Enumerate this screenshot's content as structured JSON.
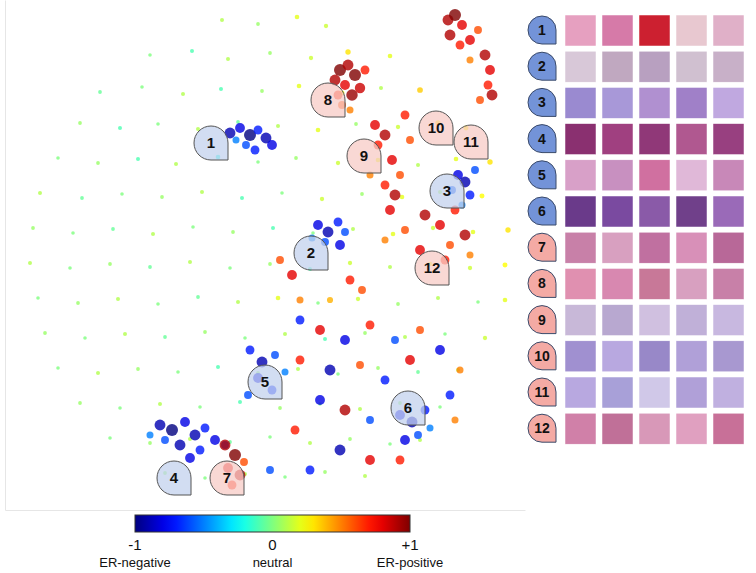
{
  "chart_data": {
    "type": "scatter",
    "xlim": [
      0,
      520
    ],
    "ylim": [
      0,
      510
    ],
    "xticks": [],
    "yticks": [],
    "tick_labels": false,
    "x": [
      217,
      253,
      292,
      321,
      145,
      187,
      223,
      265,
      306,
      343,
      385,
      95,
      137,
      178,
      216,
      257,
      294,
      337,
      376,
      415,
      75,
      115,
      153,
      193,
      233,
      273,
      313,
      351,
      393,
      433,
      461,
      53,
      93,
      133,
      171,
      213,
      253,
      291,
      333,
      373,
      413,
      451,
      485,
      35,
      77,
      117,
      157,
      197,
      237,
      277,
      317,
      357,
      397,
      435,
      477,
      28,
      68,
      108,
      148,
      188,
      228,
      268,
      308,
      348,
      388,
      428,
      468,
      503,
      25,
      65,
      105,
      145,
      185,
      225,
      265,
      305,
      345,
      385,
      425,
      465,
      500,
      33,
      73,
      113,
      153,
      193,
      233,
      273,
      313,
      353,
      393,
      433,
      473,
      500,
      40,
      80,
      120,
      160,
      200,
      240,
      280,
      320,
      360,
      400,
      440,
      480,
      53,
      93,
      133,
      173,
      213,
      253,
      293,
      333,
      373,
      413,
      453,
      75,
      115,
      155,
      195,
      235,
      275,
      315,
      355,
      395,
      435,
      105,
      145,
      185,
      225,
      265,
      305,
      345,
      385,
      415,
      160,
      200,
      240,
      280,
      320,
      360,
      225,
      235,
      245,
      253,
      261,
      241,
      267,
      231,
      250,
      335,
      343,
      350,
      340,
      347,
      333,
      355,
      337,
      330,
      345,
      360,
      443,
      450,
      457,
      445,
      455,
      465,
      473,
      480,
      485,
      483,
      475,
      487,
      465,
      370,
      380,
      373,
      387,
      395,
      380,
      365,
      390,
      405,
      400,
      453,
      460,
      447,
      465,
      457,
      470,
      420,
      435,
      450,
      460,
      445,
      415,
      440,
      465,
      400,
      385,
      380,
      313,
      323,
      333,
      320,
      335,
      307,
      340,
      275,
      287,
      295,
      345,
      357,
      325,
      295,
      315,
      340,
      365,
      390,
      415,
      295,
      325,
      355,
      380,
      405,
      435,
      455,
      315,
      340,
      365,
      290,
      335,
      365,
      305,
      445,
      450,
      395,
      265,
      395,
      407,
      420,
      413,
      400,
      425,
      245,
      257,
      270,
      253,
      267,
      280,
      243,
      155,
      167,
      180,
      190,
      200,
      210,
      175,
      160,
      195,
      220,
      145,
      185,
      220,
      230,
      223,
      235,
      227,
      239
    ],
    "values": [
      490,
      486,
      493,
      484,
      455,
      459,
      451,
      457,
      452,
      458,
      454,
      418,
      423,
      416,
      421,
      419,
      424,
      417,
      422,
      420,
      387,
      382,
      386,
      381,
      388,
      384,
      380,
      386,
      383,
      387,
      382,
      352,
      347,
      351,
      346,
      353,
      348,
      352,
      347,
      350,
      345,
      351,
      348,
      317,
      312,
      316,
      313,
      318,
      312,
      317,
      311,
      316,
      313,
      318,
      314,
      282,
      277,
      281,
      276,
      283,
      278,
      282,
      277,
      281,
      276,
      282,
      278,
      280,
      247,
      242,
      246,
      243,
      248,
      242,
      246,
      241,
      247,
      243,
      246,
      242,
      245,
      212,
      207,
      211,
      206,
      213,
      208,
      212,
      207,
      211,
      206,
      212,
      208,
      210,
      177,
      172,
      176,
      173,
      178,
      172,
      176,
      171,
      177,
      173,
      176,
      172,
      142,
      137,
      141,
      138,
      143,
      137,
      141,
      136,
      142,
      138,
      140,
      107,
      102,
      106,
      103,
      108,
      102,
      106,
      101,
      107,
      103,
      72,
      67,
      71,
      68,
      73,
      67,
      71,
      66,
      70,
      37,
      32,
      36,
      33,
      38,
      34,
      377,
      382,
      375,
      380,
      372,
      365,
      365,
      370,
      360,
      440,
      445,
      435,
      425,
      415,
      415,
      422,
      405,
      430,
      400,
      440,
      490,
      495,
      485,
      475,
      465,
      470,
      480,
      455,
      440,
      425,
      410,
      415,
      450,
      385,
      375,
      365,
      350,
      335,
      325,
      335,
      315,
      370,
      395,
      335,
      328,
      320,
      315,
      305,
      340,
      295,
      285,
      300,
      275,
      265,
      260,
      250,
      255,
      280,
      300,
      270,
      285,
      278,
      288,
      268,
      265,
      272,
      278,
      250,
      235,
      210,
      230,
      220,
      210,
      190,
      180,
      170,
      185,
      170,
      180,
      150,
      140,
      145,
      130,
      150,
      160,
      140,
      110,
      100,
      90,
      80,
      60,
      50,
      40,
      115,
      90,
      50,
      40,
      95,
      88,
      100,
      75,
      70,
      82,
      160,
      148,
      155,
      132,
      120,
      138,
      115,
      85,
      80,
      88,
      75,
      82,
      70,
      65,
      70,
      60,
      65,
      75,
      52,
      65,
      55,
      42,
      35,
      25,
      48
    ],
    "scores": [
      0.1,
      0.05,
      0.2,
      0.15,
      0,
      -0.1,
      0.1,
      0.05,
      0.15,
      0.3,
      0.2,
      -0.05,
      0,
      0.1,
      -0.1,
      0.05,
      0.2,
      0.25,
      0.1,
      0.35,
      0.05,
      -0.1,
      0,
      0.1,
      -0.05,
      0.1,
      0.2,
      0.05,
      0.15,
      0.3,
      0.25,
      0,
      0.05,
      -0.1,
      0.1,
      -0.2,
      0,
      0.05,
      0.15,
      0.2,
      0.1,
      0.2,
      0.3,
      0.1,
      -0.05,
      0,
      0.05,
      0.1,
      -0.1,
      0,
      0.15,
      0.05,
      0.2,
      0.1,
      0.25,
      0.05,
      0,
      -0.05,
      0.1,
      0,
      0.05,
      -0.1,
      0,
      0.1,
      0.2,
      0.15,
      0.2,
      0.3,
      0.1,
      0,
      0.05,
      -0.05,
      0.1,
      0,
      0.05,
      -0.1,
      0.15,
      0.1,
      0.2,
      0.15,
      0.25,
      0,
      0.05,
      0.1,
      0,
      -0.05,
      0.1,
      0.2,
      0,
      0.15,
      0.05,
      0.1,
      0,
      0.2,
      0.05,
      0,
      0.1,
      -0.05,
      0.05,
      0,
      0.1,
      -0.1,
      0.05,
      0.1,
      0,
      0.15,
      0,
      0.1,
      0.05,
      0,
      -0.1,
      0.05,
      0.1,
      0,
      0.05,
      -0.05,
      0.1,
      0.05,
      0,
      0.1,
      0,
      -0.1,
      0.05,
      0,
      0.1,
      0.05,
      0,
      0,
      0.05,
      0.1,
      -0.05,
      0,
      0.1,
      0.05,
      0,
      0.1,
      0.05,
      0,
      0.1,
      0,
      0.05,
      0.1,
      -0.9,
      -0.8,
      -1,
      -0.7,
      -0.9,
      -0.6,
      -0.8,
      -0.5,
      -0.7,
      1,
      0.9,
      1,
      0.8,
      0.95,
      0.7,
      0.85,
      0.6,
      0.9,
      0.5,
      0.7,
      0.9,
      1,
      0.8,
      0.9,
      0.7,
      0.8,
      0.6,
      0.9,
      0.8,
      0.7,
      0.6,
      0.9,
      0.5,
      0.8,
      0.9,
      0.7,
      0.8,
      0.6,
      0.7,
      0.5,
      0.9,
      0.6,
      0.7,
      -0.8,
      -0.9,
      -0.6,
      -0.7,
      -0.5,
      -0.6,
      0.9,
      0.8,
      0.7,
      0.9,
      0.6,
      0.8,
      0.7,
      0.5,
      0.6,
      0.8,
      0.5,
      -0.8,
      -0.9,
      -0.7,
      -0.6,
      -0.8,
      -0.5,
      -0.6,
      0.6,
      0.8,
      0.5,
      0.7,
      0.6,
      0.4,
      -0.7,
      0.8,
      -0.8,
      0.7,
      -0.6,
      0.6,
      0.7,
      -0.9,
      0.6,
      -0.7,
      0.8,
      -0.8,
      0.5,
      -0.8,
      0.9,
      -0.6,
      0.7,
      -0.9,
      0.8,
      -0.7,
      -0.7,
      0.5,
      0.7,
      -0.6,
      -0.8,
      -0.9,
      -0.7,
      -0.6,
      -0.8,
      -0.5,
      -0.7,
      -0.9,
      -0.6,
      -0.8,
      -0.7,
      -0.5,
      -0.6,
      -0.9,
      -1,
      -0.8,
      -0.9,
      -0.7,
      -0.8,
      -0.9,
      -0.6,
      -0.7,
      -0.6,
      -0.5,
      -0.8,
      0.9,
      1,
      0.8,
      0.9,
      0.7,
      0.6
    ],
    "colorbar": {
      "range": [
        -1,
        1
      ],
      "ticks": [
        -1,
        0,
        {
          "value": 1,
          "label": "+1"
        }
      ],
      "tick_names": [
        "ER-negative",
        "neutral",
        "ER-positive"
      ]
    },
    "clusters": [
      {
        "label": "1",
        "x": 206,
        "y": 367,
        "color": "#c3d1ee"
      },
      {
        "label": "2",
        "x": 306,
        "y": 257,
        "color": "#c3d1ee"
      },
      {
        "label": "3",
        "x": 442,
        "y": 319,
        "color": "#c3d1ee"
      },
      {
        "label": "4",
        "x": 169,
        "y": 32,
        "color": "#c3d1ee"
      },
      {
        "label": "5",
        "x": 260,
        "y": 128,
        "color": "#c3d1ee"
      },
      {
        "label": "6",
        "x": 403,
        "y": 102,
        "color": "#c3d1ee"
      },
      {
        "label": "7",
        "x": 222,
        "y": 32,
        "color": "#f7cbc5"
      },
      {
        "label": "8",
        "x": 323,
        "y": 410,
        "color": "#f7cbc5"
      },
      {
        "label": "9",
        "x": 359,
        "y": 354,
        "color": "#f7cbc5"
      },
      {
        "label": "10",
        "x": 431,
        "y": 382,
        "color": "#f7cbc5"
      },
      {
        "label": "11",
        "x": 466,
        "y": 368,
        "color": "#f7cbc5"
      },
      {
        "label": "12",
        "x": 427,
        "y": 242,
        "color": "#f7cbc5"
      }
    ],
    "panels": [
      {
        "label": "1",
        "color": "#7393d8",
        "colors": [
          "#e6a0c0",
          "#d67aa8",
          "#cc2030",
          "#e8c8d0",
          "#e0b0c8"
        ]
      },
      {
        "label": "2",
        "color": "#7393d8",
        "colors": [
          "#d8c8d8",
          "#c0a8c0",
          "#b8a0c0",
          "#d0c0d0",
          "#c8b0c8"
        ]
      },
      {
        "label": "3",
        "color": "#7393d8",
        "colors": [
          "#9a8ad0",
          "#a898d8",
          "#b090d0",
          "#a080c8",
          "#c0a8e0"
        ]
      },
      {
        "label": "4",
        "color": "#7393d8",
        "colors": [
          "#8a3070",
          "#a04080",
          "#903878",
          "#b05890",
          "#984080"
        ]
      },
      {
        "label": "5",
        "color": "#7393d8",
        "colors": [
          "#d8a0c8",
          "#c890c0",
          "#d070a0",
          "#e0b8d8",
          "#c888b8"
        ]
      },
      {
        "label": "6",
        "color": "#7393d8",
        "colors": [
          "#6a3a8a",
          "#7a4aa0",
          "#8a5aa8",
          "#70408a",
          "#9a6ab8"
        ]
      },
      {
        "label": "7",
        "color": "#f4aaa4",
        "colors": [
          "#c880a8",
          "#d8a0c0",
          "#c070a0",
          "#d890b8",
          "#b86898"
        ]
      },
      {
        "label": "8",
        "color": "#f4aaa4",
        "colors": [
          "#e090b0",
          "#d888b0",
          "#c87898",
          "#d8a0c0",
          "#c880a8"
        ]
      },
      {
        "label": "9",
        "color": "#f4aaa4",
        "colors": [
          "#c8b8d8",
          "#b8a8d0",
          "#d0c0e0",
          "#c0b0d8",
          "#c8b8e0"
        ]
      },
      {
        "label": "10",
        "color": "#f4aaa4",
        "colors": [
          "#a090d0",
          "#b8a8e0",
          "#9888c8",
          "#b0a0d8",
          "#a898d0"
        ]
      },
      {
        "label": "11",
        "color": "#f4aaa4",
        "colors": [
          "#b8a8e0",
          "#a8a0d8",
          "#d0c8e8",
          "#b0a0d8",
          "#c0b0e0"
        ]
      },
      {
        "label": "12",
        "color": "#f4aaa4",
        "colors": [
          "#d080a8",
          "#c07098",
          "#d898b8",
          "#e0a0c0",
          "#c87098"
        ]
      }
    ]
  }
}
